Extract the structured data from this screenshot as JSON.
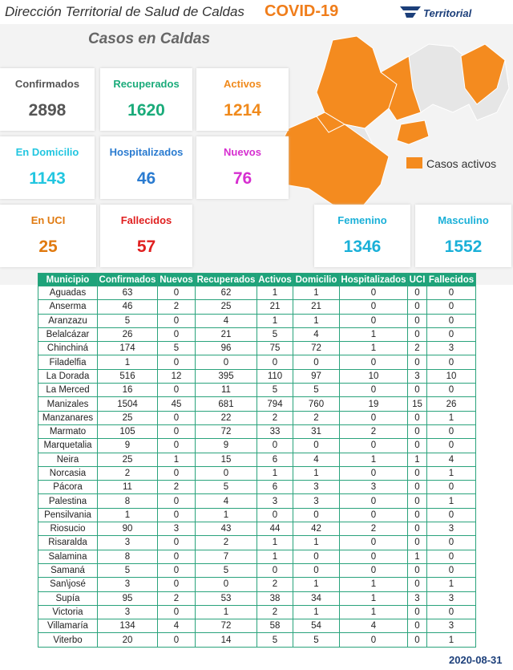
{
  "header": {
    "title": "Dirección Territorial de Salud de Caldas",
    "tag": "COVID-19",
    "logo": "Territorial"
  },
  "subtitle": "Casos en Caldas",
  "cards": [
    {
      "label": "Confirmados",
      "value": 2898
    },
    {
      "label": "Recuperados",
      "value": 1620
    },
    {
      "label": "Activos",
      "value": 1214
    },
    {
      "label": "En Domicilio",
      "value": 1143
    },
    {
      "label": "Hospitalizados",
      "value": 46
    },
    {
      "label": "Nuevos",
      "value": 76
    },
    {
      "label": "En UCI",
      "value": 25
    },
    {
      "label": "Fallecidos",
      "value": 57
    },
    {
      "label": "Femenino",
      "value": 1346
    },
    {
      "label": "Masculino",
      "value": 1552
    }
  ],
  "map": {
    "legend": "Casos activos"
  },
  "table": {
    "columns": [
      "Municipio",
      "Confirmados",
      "Nuevos",
      "Recuperados",
      "Activos",
      "Domicilio",
      "Hospitalizados",
      "UCI",
      "Fallecidos"
    ],
    "rows": [
      [
        "Aguadas",
        63,
        0,
        62,
        1,
        1,
        0,
        0,
        0
      ],
      [
        "Anserma",
        46,
        2,
        25,
        21,
        21,
        0,
        0,
        0
      ],
      [
        "Aranzazu",
        5,
        0,
        4,
        1,
        1,
        0,
        0,
        0
      ],
      [
        "Belalcázar",
        26,
        0,
        21,
        5,
        4,
        1,
        0,
        0
      ],
      [
        "Chinchiná",
        174,
        5,
        96,
        75,
        72,
        1,
        2,
        3
      ],
      [
        "Filadelfia",
        1,
        0,
        0,
        0,
        0,
        0,
        0,
        0
      ],
      [
        "La Dorada",
        516,
        12,
        395,
        110,
        97,
        10,
        3,
        10
      ],
      [
        "La Merced",
        16,
        0,
        11,
        5,
        5,
        0,
        0,
        0
      ],
      [
        "Manizales",
        1504,
        45,
        681,
        794,
        760,
        19,
        15,
        26
      ],
      [
        "Manzanares",
        25,
        0,
        22,
        2,
        2,
        0,
        0,
        1
      ],
      [
        "Marmato",
        105,
        0,
        72,
        33,
        31,
        2,
        0,
        0
      ],
      [
        "Marquetalia",
        9,
        0,
        9,
        0,
        0,
        0,
        0,
        0
      ],
      [
        "Neira",
        25,
        1,
        15,
        6,
        4,
        1,
        1,
        4
      ],
      [
        "Norcasia",
        2,
        0,
        0,
        1,
        1,
        0,
        0,
        1
      ],
      [
        "Pácora",
        11,
        2,
        5,
        6,
        3,
        3,
        0,
        0
      ],
      [
        "Palestina",
        8,
        0,
        4,
        3,
        3,
        0,
        0,
        1
      ],
      [
        "Pensilvania",
        1,
        0,
        1,
        0,
        0,
        0,
        0,
        0
      ],
      [
        "Riosucio",
        90,
        3,
        43,
        44,
        42,
        2,
        0,
        3
      ],
      [
        "Risaralda",
        3,
        0,
        2,
        1,
        1,
        0,
        0,
        0
      ],
      [
        "Salamina",
        8,
        0,
        7,
        1,
        0,
        0,
        1,
        0
      ],
      [
        "Samaná",
        5,
        0,
        5,
        0,
        0,
        0,
        0,
        0
      ],
      [
        "San\\josé",
        3,
        0,
        0,
        2,
        1,
        1,
        0,
        1
      ],
      [
        "Supía",
        95,
        2,
        53,
        38,
        34,
        1,
        3,
        3
      ],
      [
        "Victoria",
        3,
        0,
        1,
        2,
        1,
        1,
        0,
        0
      ],
      [
        "Villamaría",
        134,
        4,
        72,
        58,
        54,
        4,
        0,
        3
      ],
      [
        "Viterbo",
        20,
        0,
        14,
        5,
        5,
        0,
        0,
        1
      ]
    ]
  },
  "date": "2020-08-31"
}
